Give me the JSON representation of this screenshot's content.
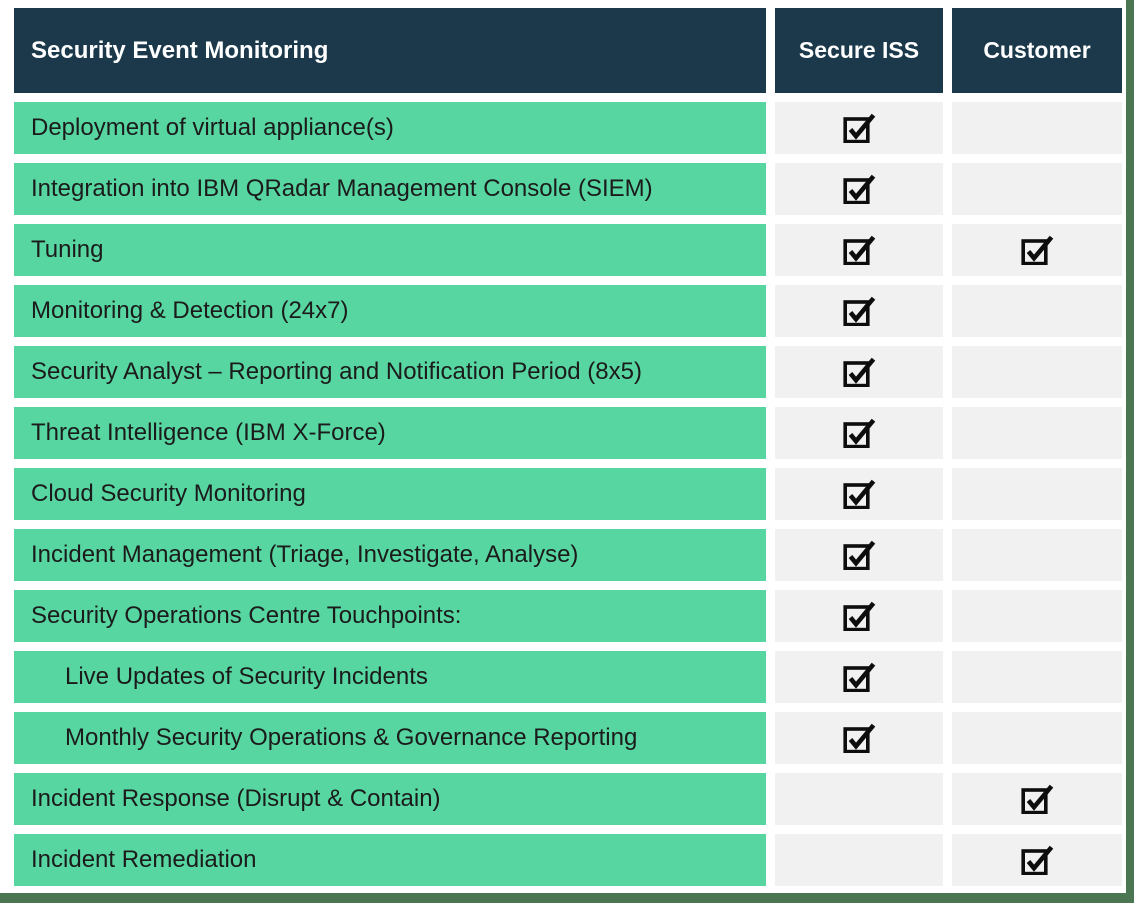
{
  "table": {
    "title": "Security Event Monitoring",
    "columns": [
      "Secure ISS",
      "Customer"
    ],
    "rows": [
      {
        "label": "Deployment of virtual appliance(s)",
        "indent": false,
        "secure_iss": true,
        "customer": false
      },
      {
        "label": "Integration into IBM QRadar Management Console (SIEM)",
        "indent": false,
        "secure_iss": true,
        "customer": false
      },
      {
        "label": "Tuning",
        "indent": false,
        "secure_iss": true,
        "customer": true
      },
      {
        "label": "Monitoring & Detection (24x7)",
        "indent": false,
        "secure_iss": true,
        "customer": false
      },
      {
        "label": "Security Analyst – Reporting and Notification Period (8x5)",
        "indent": false,
        "secure_iss": true,
        "customer": false
      },
      {
        "label": "Threat Intelligence (IBM X-Force)",
        "indent": false,
        "secure_iss": true,
        "customer": false
      },
      {
        "label": "Cloud Security Monitoring",
        "indent": false,
        "secure_iss": true,
        "customer": false
      },
      {
        "label": "Incident Management (Triage, Investigate, Analyse)",
        "indent": false,
        "secure_iss": true,
        "customer": false
      },
      {
        "label": "Security Operations Centre Touchpoints:",
        "indent": false,
        "secure_iss": true,
        "customer": false
      },
      {
        "label": "Live Updates of Security Incidents",
        "indent": true,
        "secure_iss": true,
        "customer": false
      },
      {
        "label": "Monthly Security Operations & Governance Reporting",
        "indent": true,
        "secure_iss": true,
        "customer": false
      },
      {
        "label": "Incident Response (Disrupt & Contain)",
        "indent": false,
        "secure_iss": false,
        "customer": true
      },
      {
        "label": "Incident Remediation",
        "indent": false,
        "secure_iss": false,
        "customer": true
      }
    ]
  },
  "icons": {
    "checked": "checked-checkbox-icon"
  },
  "colors": {
    "header_bg": "#1b394b",
    "header_text": "#ffffff",
    "row_bg": "#57d6a2",
    "row_text": "#1b1b1b",
    "cell_bg": "#f1f1f1",
    "frame": "#4c7552",
    "check": "#0d0d0d"
  }
}
